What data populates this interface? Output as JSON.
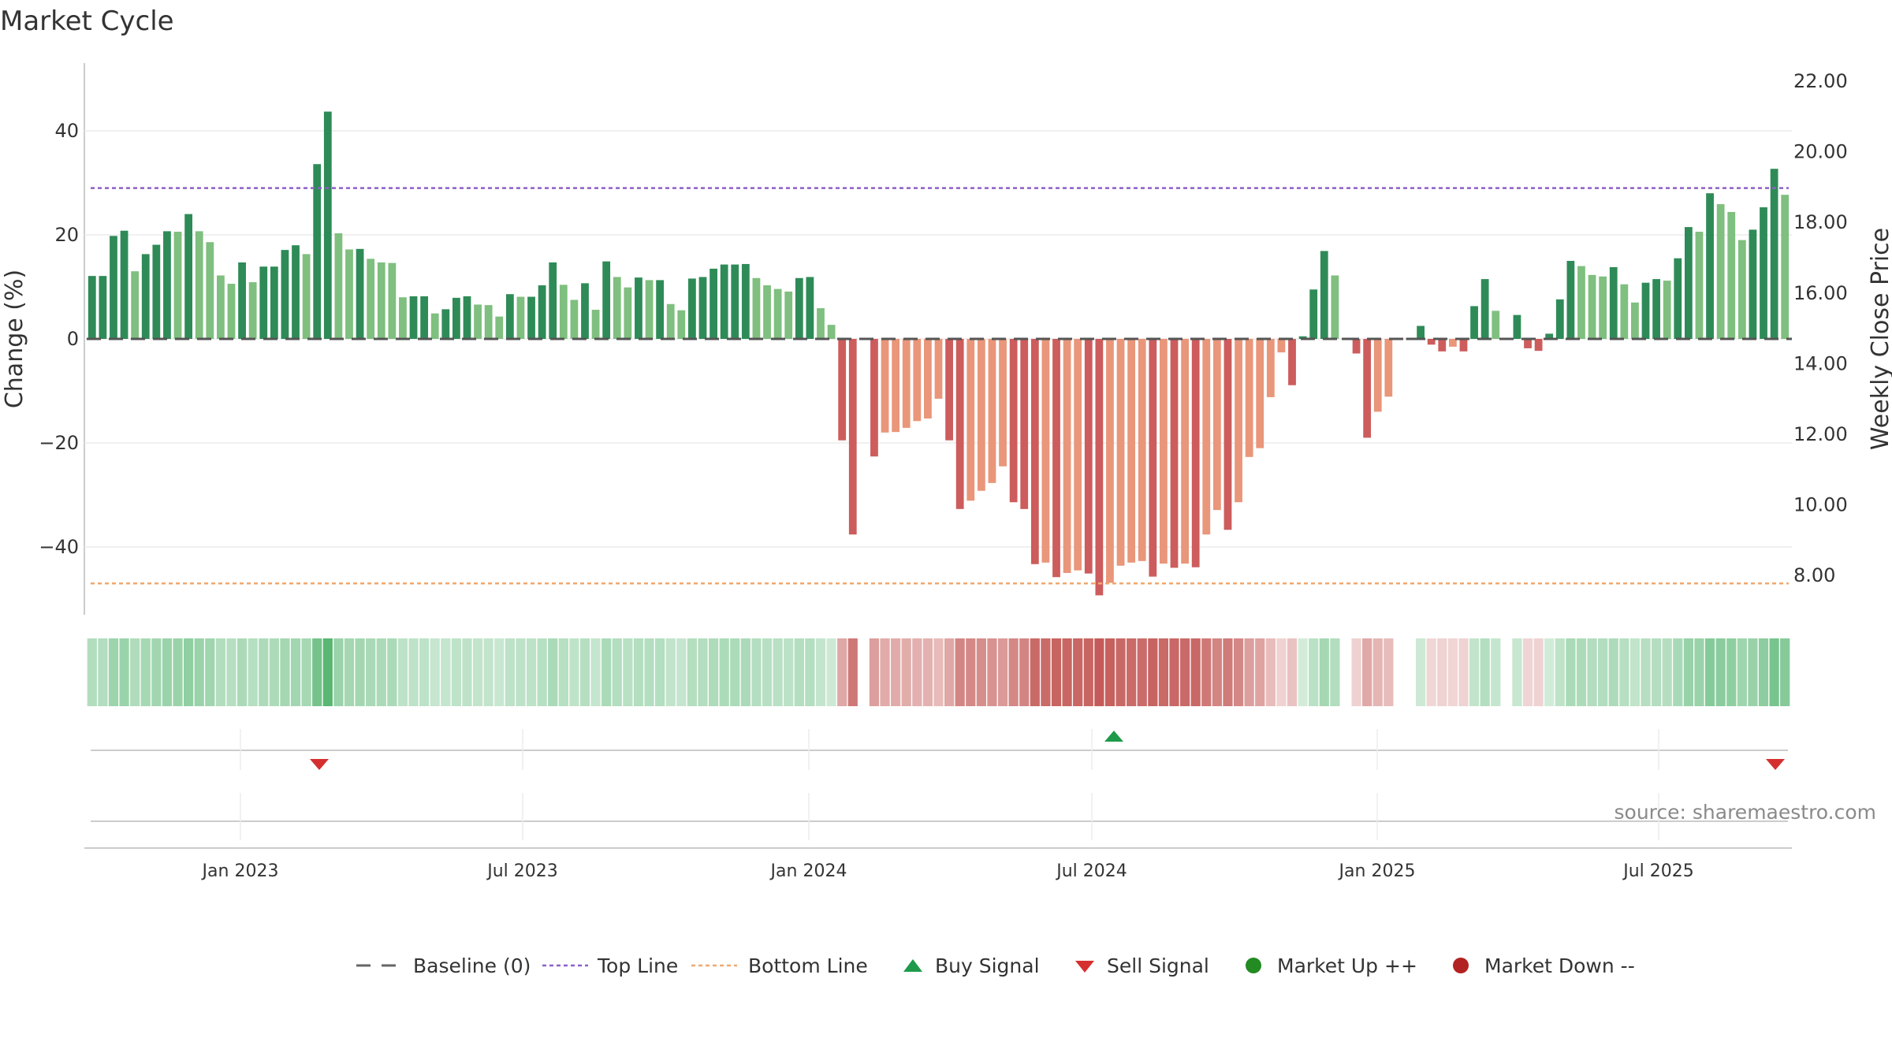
{
  "chart_data": {
    "type": "bar",
    "title": "Market Cycle",
    "ylabel_left": "Change (%)",
    "ylabel_right": "Weekly Close Price",
    "y_left_ticks": [
      "40",
      "20",
      "0",
      "−20",
      "−40"
    ],
    "y_right_ticks": [
      "22.00",
      "20.00",
      "18.00",
      "16.00",
      "14.00",
      "12.00",
      "10.00",
      "8.00"
    ],
    "x_ticks": [
      "Jan 2023",
      "Jul 2023",
      "Jan 2024",
      "Jul 2024",
      "Jan 2025",
      "Jul 2025"
    ],
    "ylim_left": [
      -53,
      53
    ],
    "top_line": 29,
    "bottom_line": -47,
    "series": [
      {
        "values": [
          12.1,
          12.1,
          19.8,
          20.8,
          13.0,
          16.3,
          18.1,
          20.7,
          20.6,
          24.0,
          20.7,
          18.6,
          12.2,
          10.6,
          14.7,
          10.9,
          13.9,
          13.9,
          17.1,
          18.0,
          16.3,
          33.6,
          43.7,
          20.3,
          17.2,
          17.3,
          15.4,
          14.7,
          14.6,
          8.0,
          8.2,
          8.2,
          4.9,
          5.7,
          7.9,
          8.2,
          6.6,
          6.5,
          4.3,
          8.6,
          8.1,
          8.1,
          10.3,
          14.7,
          10.4,
          7.5,
          10.7,
          5.6,
          14.9,
          11.9,
          9.9,
          11.8,
          11.3,
          11.3,
          6.7,
          5.5,
          11.6,
          11.9,
          13.5,
          14.3,
          14.3,
          14.4,
          11.7,
          10.3,
          9.6,
          9.1,
          11.7,
          11.9,
          5.9,
          2.7,
          -19.5,
          -37.6,
          0.0,
          -22.6,
          -18.0,
          -17.9,
          -17.1,
          -15.8,
          -15.3,
          -11.5,
          -19.5,
          -32.7,
          -31.1,
          -29.2,
          -27.7,
          -24.5,
          -31.4,
          -32.7,
          -43.3,
          -43.0,
          -45.8,
          -45.0,
          -44.5,
          -45.1,
          -49.3,
          -46.9,
          -43.6,
          -43.0,
          -42.7,
          -45.7,
          -43.2,
          -44.0,
          -43.2,
          -43.9,
          -37.6,
          -32.9,
          -36.7,
          -31.4,
          -22.7,
          -21.0,
          -11.2,
          -2.6,
          -8.9,
          0.5,
          9.5,
          16.9,
          12.2,
          0.0,
          -2.8,
          -19.0,
          -14.0,
          -11.1,
          0.0,
          0.0,
          2.5,
          -1.1,
          -2.4,
          -1.5,
          -2.4,
          6.3,
          11.5,
          5.4,
          0.0,
          4.6,
          -1.8,
          -2.3,
          1.0,
          7.6,
          15.0,
          14.0,
          12.3,
          12.0,
          13.8,
          10.5,
          7.0,
          10.8,
          11.5,
          11.2,
          15.5,
          21.5,
          20.6,
          28.0,
          25.9,
          24.4,
          19.0,
          21.0,
          25.3,
          32.7,
          27.7
        ]
      }
    ],
    "signals": {
      "buy": [
        "Jul 2024"
      ],
      "sell": [
        "Feb 2023",
        "Oct 2025"
      ]
    },
    "source_text": "source: sharemaestro.com",
    "legend": [
      {
        "label": "Baseline (0)",
        "symbol": "dash-line",
        "color": "#666666"
      },
      {
        "label": "Top Line",
        "symbol": "dotted-line",
        "color": "#8e5fc7"
      },
      {
        "label": "Bottom Line",
        "symbol": "dotted-line",
        "color": "#f0a86e"
      },
      {
        "label": "Buy Signal",
        "symbol": "triangle-up",
        "color": "#1e9a4a"
      },
      {
        "label": "Sell Signal",
        "symbol": "triangle-down",
        "color": "#d62f2f"
      },
      {
        "label": "Market Up ++",
        "symbol": "circle",
        "color": "#228b22"
      },
      {
        "label": "Market Down --",
        "symbol": "circle",
        "color": "#b22222"
      }
    ],
    "colors": {
      "up_strong": "#2e8b57",
      "up_light": "#7fbf7f",
      "down_strong": "#cd5c5c",
      "down_light": "#e9967a",
      "top_line": "#8e5fc7",
      "bottom_line": "#f0a86e"
    }
  }
}
